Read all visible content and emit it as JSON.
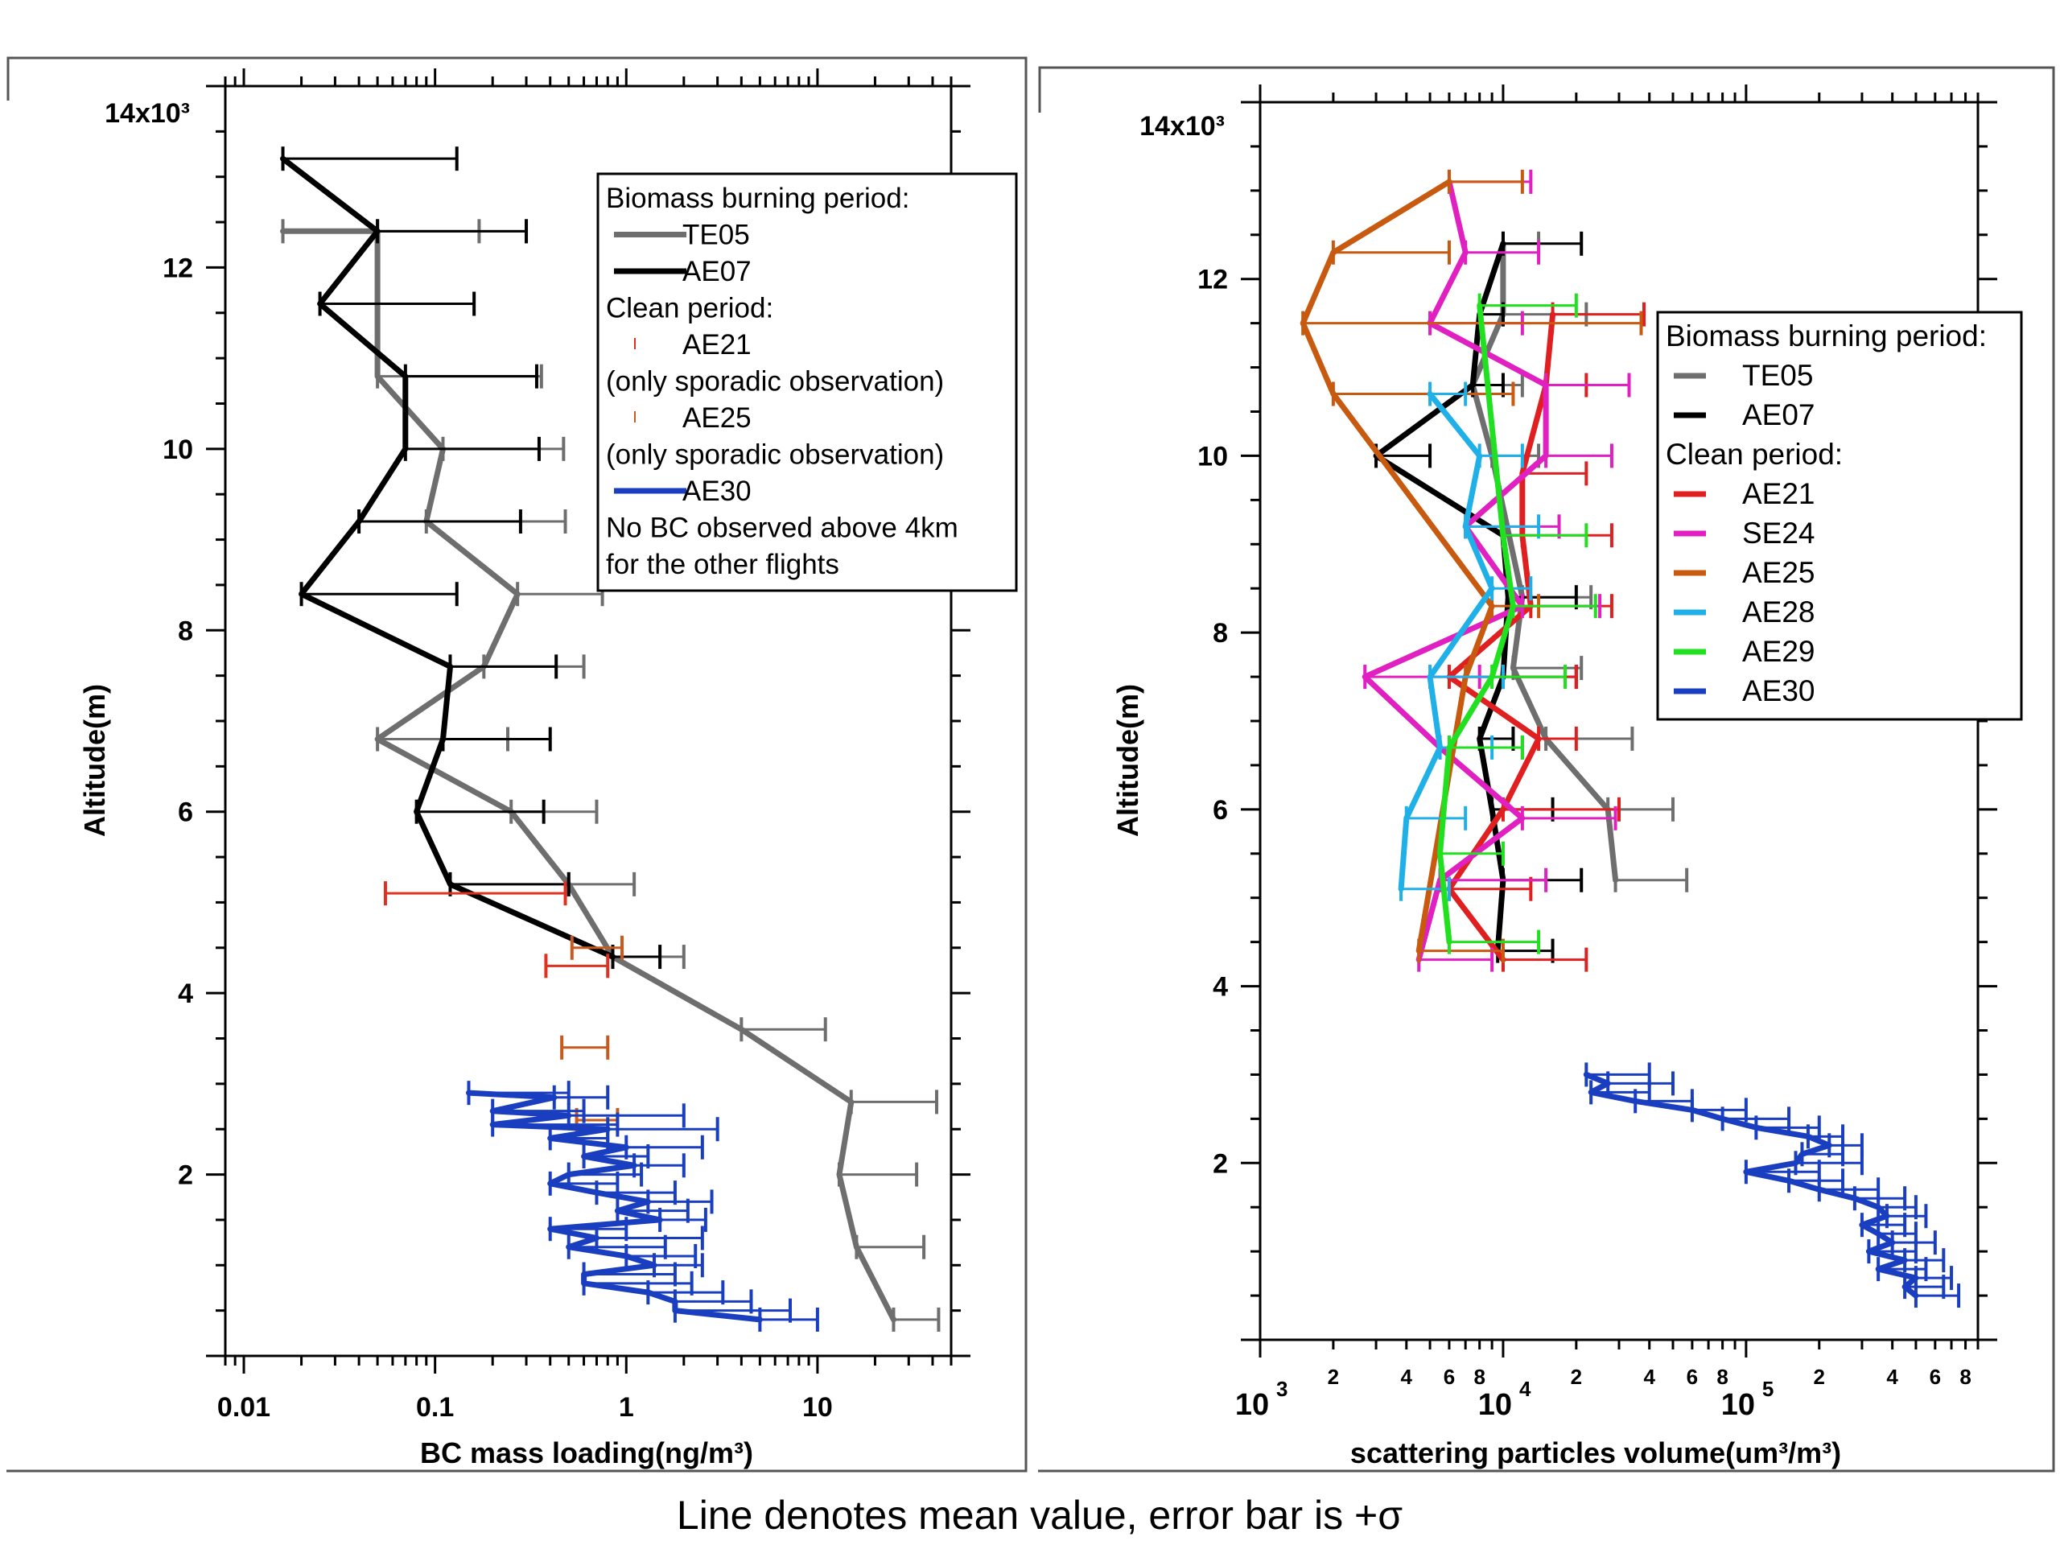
{
  "caption": "Line denotes mean value, error bar is +σ",
  "chart_data": [
    {
      "type": "line",
      "orientation": "vertical profile",
      "xlabel": "BC mass loading(ng/m³)",
      "ylabel": "Altitude(m)",
      "xscale": "log",
      "xlim": [
        0.008,
        50
      ],
      "ylim": [
        0,
        14000
      ],
      "y_multiplier_label": "14x10³",
      "x_ticks": [
        {
          "v": 0.01,
          "label": "0.01"
        },
        {
          "v": 0.1,
          "label": "0.1"
        },
        {
          "v": 1,
          "label": "1"
        },
        {
          "v": 10,
          "label": "10"
        }
      ],
      "y_ticks": [
        {
          "v": 2000,
          "label": "2"
        },
        {
          "v": 4000,
          "label": "4"
        },
        {
          "v": 6000,
          "label": "6"
        },
        {
          "v": 8000,
          "label": "8"
        },
        {
          "v": 10000,
          "label": "10"
        },
        {
          "v": 12000,
          "label": "12"
        }
      ],
      "legend": {
        "position": "top-right",
        "entries": [
          {
            "text": "Biomass burning period:",
            "kind": "header"
          },
          {
            "text": "TE05",
            "kind": "line",
            "color": "#6e6e6e"
          },
          {
            "text": "AE07",
            "kind": "line",
            "color": "#000000"
          },
          {
            "text": "Clean period:",
            "kind": "header"
          },
          {
            "text": "AE21",
            "kind": "tick",
            "color": "#e03020"
          },
          {
            "text": "(only sporadic observation)",
            "kind": "note"
          },
          {
            "text": "AE25",
            "kind": "tick",
            "color": "#c85a20"
          },
          {
            "text": "(only sporadic observation)",
            "kind": "note"
          },
          {
            "text": "AE30",
            "kind": "line",
            "color": "#1a3ec0"
          },
          {
            "text": "No BC observed above 4km",
            "kind": "note"
          },
          {
            "text": "for the other flights",
            "kind": "note"
          }
        ]
      },
      "series": [
        {
          "name": "TE05",
          "color": "#6e6e6e",
          "line": true,
          "points": [
            [
              0.016,
              12400,
              0.17
            ],
            [
              0.05,
              12400,
              0.3
            ],
            [
              0.05,
              10800,
              0.36
            ],
            [
              0.11,
              10000,
              0.47
            ],
            [
              0.09,
              9200,
              0.48
            ],
            [
              0.27,
              8400,
              0.75
            ],
            [
              0.18,
              7600,
              0.6
            ],
            [
              0.05,
              6800,
              0.24
            ],
            [
              0.25,
              6000,
              0.7
            ],
            [
              0.5,
              5200,
              1.1
            ],
            [
              0.85,
              4400,
              2.0
            ],
            [
              4,
              3600,
              11
            ],
            [
              15,
              2800,
              42
            ],
            [
              13,
              2000,
              33
            ],
            [
              16,
              1200,
              36
            ],
            [
              25,
              400,
              43
            ]
          ]
        },
        {
          "name": "AE07",
          "color": "#000000",
          "line": true,
          "points": [
            [
              0.016,
              13200,
              0.13
            ],
            [
              0.05,
              12400,
              0.3
            ],
            [
              0.025,
              11600,
              0.16
            ],
            [
              0.07,
              10800,
              0.34
            ],
            [
              0.07,
              10000,
              0.35
            ],
            [
              0.04,
              9200,
              0.28
            ],
            [
              0.02,
              8400,
              0.13
            ],
            [
              0.12,
              7600,
              0.43
            ],
            [
              0.11,
              6800,
              0.4
            ],
            [
              0.08,
              6000,
              0.37
            ],
            [
              0.12,
              5200,
              0.5
            ],
            [
              0.85,
              4400,
              1.5
            ]
          ]
        },
        {
          "name": "AE21",
          "color": "#e03020",
          "line": false,
          "points": [
            [
              0.055,
              5100,
              0.48
            ],
            [
              0.38,
              4300,
              0.8
            ]
          ]
        },
        {
          "name": "AE25",
          "color": "#c85a20",
          "line": false,
          "points": [
            [
              0.52,
              4500,
              0.95
            ],
            [
              0.46,
              3400,
              0.8
            ],
            [
              0.55,
              2600,
              0.9
            ]
          ]
        },
        {
          "name": "AE30",
          "color": "#1a3ec0",
          "line": true,
          "points": [
            [
              0.15,
              2900,
              0.5
            ],
            [
              0.42,
              2850,
              0.8
            ],
            [
              0.2,
              2700,
              0.6
            ],
            [
              0.5,
              2650,
              2.0
            ],
            [
              0.2,
              2550,
              0.9
            ],
            [
              0.8,
              2500,
              3.0
            ],
            [
              0.4,
              2400,
              0.8
            ],
            [
              1.0,
              2300,
              2.5
            ],
            [
              0.6,
              2200,
              1.3
            ],
            [
              1.1,
              2100,
              2.0
            ],
            [
              0.5,
              2000,
              1.2
            ],
            [
              0.4,
              1900,
              0.9
            ],
            [
              0.7,
              1800,
              1.8
            ],
            [
              1.3,
              1700,
              2.8
            ],
            [
              0.9,
              1600,
              2.1
            ],
            [
              1.5,
              1500,
              2.6
            ],
            [
              0.4,
              1400,
              1.0
            ],
            [
              0.7,
              1300,
              2.5
            ],
            [
              0.5,
              1200,
              1.6
            ],
            [
              1.0,
              1100,
              2.3
            ],
            [
              1.4,
              1000,
              2.5
            ],
            [
              0.6,
              900,
              1.8
            ],
            [
              0.6,
              800,
              2.2
            ],
            [
              1.3,
              700,
              3.2
            ],
            [
              1.8,
              600,
              4.5
            ],
            [
              1.8,
              500,
              7.2
            ],
            [
              5.0,
              400,
              10
            ]
          ]
        }
      ]
    },
    {
      "type": "line",
      "orientation": "vertical profile",
      "xlabel": "scattering particles volume(um³/m³)",
      "ylabel": "Altitude(m)",
      "xscale": "log",
      "xlim": [
        1000,
        900000
      ],
      "ylim": [
        0,
        14000
      ],
      "y_multiplier_label": "14x10³",
      "x_ticks": [
        {
          "v": 1000,
          "label": "10³",
          "base": "10",
          "exp": "3"
        },
        {
          "v": 10000,
          "label": "10⁴",
          "base": "10",
          "exp": "4"
        },
        {
          "v": 100000,
          "label": "10⁵",
          "base": "10",
          "exp": "5"
        }
      ],
      "x_minor_labels": [
        "2",
        "4",
        "6",
        "8"
      ],
      "y_ticks": [
        {
          "v": 2000,
          "label": "2"
        },
        {
          "v": 4000,
          "label": "4"
        },
        {
          "v": 6000,
          "label": "6"
        },
        {
          "v": 8000,
          "label": "8"
        },
        {
          "v": 10000,
          "label": "10"
        },
        {
          "v": 12000,
          "label": "12"
        }
      ],
      "legend": {
        "position": "right",
        "entries": [
          {
            "text": "Biomass burning period:",
            "kind": "header"
          },
          {
            "text": "TE05",
            "kind": "line",
            "color": "#6e6e6e"
          },
          {
            "text": "AE07",
            "kind": "line",
            "color": "#000000"
          },
          {
            "text": "Clean period:",
            "kind": "header"
          },
          {
            "text": "AE21",
            "kind": "line",
            "color": "#e02020"
          },
          {
            "text": "SE24",
            "kind": "line",
            "color": "#e020c0"
          },
          {
            "text": "AE25",
            "kind": "line",
            "color": "#c85a10"
          },
          {
            "text": "AE28",
            "kind": "line",
            "color": "#20b0e8"
          },
          {
            "text": "AE29",
            "kind": "line",
            "color": "#20e020"
          },
          {
            "text": "AE30",
            "kind": "line",
            "color": "#1a3ec0"
          }
        ]
      },
      "series": [
        {
          "name": "TE05",
          "color": "#6e6e6e",
          "line": true,
          "points": [
            [
              10000,
              12400,
              14000
            ],
            [
              10000,
              11600,
              22000
            ],
            [
              7500,
              10800,
              12000
            ],
            [
              9000,
              10000,
              14000
            ],
            [
              12000,
              8400,
              23000
            ],
            [
              11000,
              7600,
              21000
            ],
            [
              15000,
              6800,
              34000
            ],
            [
              27000,
              6000,
              50000
            ],
            [
              29000,
              5200,
              57000
            ]
          ]
        },
        {
          "name": "AE07",
          "color": "#000000",
          "line": true,
          "points": [
            [
              10000,
              12400,
              21000
            ],
            [
              8000,
              11600,
              10000
            ],
            [
              7500,
              10800,
              10000
            ],
            [
              3000,
              10000,
              5000
            ],
            [
              10000,
              9100,
              12000
            ],
            [
              10500,
              8400,
              20000
            ],
            [
              10000,
              7500,
              20000
            ],
            [
              8000,
              6800,
              11000
            ],
            [
              9000,
              6000,
              16000
            ],
            [
              10000,
              5200,
              21000
            ],
            [
              9500,
              4400,
              16000
            ]
          ]
        },
        {
          "name": "AE21",
          "color": "#e02020",
          "line": true,
          "points": [
            [
              16000,
              11600,
              38000
            ],
            [
              15000,
              10800,
              22000
            ],
            [
              12000,
              9800,
              22000
            ],
            [
              12000,
              9100,
              28000
            ],
            [
              13000,
              8300,
              28000
            ],
            [
              6000,
              7500,
              20000
            ],
            [
              14000,
              6800,
              20000
            ],
            [
              10000,
              6000,
              30000
            ],
            [
              6000,
              5100,
              13000
            ],
            [
              10000,
              4300,
              22000
            ]
          ]
        },
        {
          "name": "SE24",
          "color": "#e020c0",
          "line": true,
          "points": [
            [
              6000,
              13100,
              13000
            ],
            [
              7000,
              12300,
              14000
            ],
            [
              5000,
              11500,
              12000
            ],
            [
              15000,
              10800,
              33000
            ],
            [
              15000,
              10000,
              28000
            ],
            [
              7000,
              9200,
              17000
            ],
            [
              12000,
              8300,
              25000
            ],
            [
              2700,
              7500,
              8000
            ],
            [
              5500,
              6700,
              12000
            ],
            [
              12000,
              5900,
              29000
            ],
            [
              5500,
              5200,
              15000
            ],
            [
              4500,
              4300,
              9000
            ]
          ]
        },
        {
          "name": "AE25",
          "color": "#c85a10",
          "line": true,
          "points": [
            [
              6000,
              13100,
              12000
            ],
            [
              2000,
              12300,
              6000
            ],
            [
              1500,
              11500,
              37000
            ],
            [
              2000,
              10700,
              11000
            ],
            [
              9000,
              8300,
              14000
            ],
            [
              7000,
              7500,
              10000
            ],
            [
              4500,
              4400,
              10000
            ]
          ]
        },
        {
          "name": "AE28",
          "color": "#20b0e8",
          "line": true,
          "points": [
            [
              5000,
              10700,
              7000
            ],
            [
              8000,
              10000,
              12000
            ],
            [
              7000,
              9200,
              14000
            ],
            [
              9000,
              8500,
              13000
            ],
            [
              5000,
              7500,
              10000
            ],
            [
              5500,
              6700,
              9000
            ],
            [
              4000,
              5900,
              7000
            ],
            [
              3800,
              5100,
              6000
            ]
          ]
        },
        {
          "name": "AE29",
          "color": "#20e020",
          "line": true,
          "points": [
            [
              8000,
              11700,
              20000
            ],
            [
              10000,
              9100,
              22000
            ],
            [
              11000,
              8300,
              24000
            ],
            [
              9000,
              7500,
              18000
            ],
            [
              6000,
              6700,
              12000
            ],
            [
              5500,
              5500,
              10000
            ],
            [
              6000,
              4500,
              14000
            ]
          ]
        },
        {
          "name": "AE30",
          "color": "#1a3ec0",
          "line": true,
          "points": [
            [
              22000,
              3000,
              40000
            ],
            [
              27000,
              2900,
              50000
            ],
            [
              23000,
              2800,
              40000
            ],
            [
              35000,
              2700,
              60000
            ],
            [
              60000,
              2600,
              100000
            ],
            [
              80000,
              2500,
              150000
            ],
            [
              110000,
              2400,
              200000
            ],
            [
              180000,
              2300,
              250000
            ],
            [
              220000,
              2200,
              300000
            ],
            [
              170000,
              2100,
              250000
            ],
            [
              160000,
              2000,
              300000
            ],
            [
              100000,
              1900,
              200000
            ],
            [
              150000,
              1800,
              250000
            ],
            [
              200000,
              1700,
              350000
            ],
            [
              280000,
              1600,
              450000
            ],
            [
              350000,
              1500,
              500000
            ],
            [
              380000,
              1400,
              550000
            ],
            [
              300000,
              1300,
              450000
            ],
            [
              350000,
              1200,
              500000
            ],
            [
              400000,
              1100,
              600000
            ],
            [
              320000,
              1000,
              500000
            ],
            [
              450000,
              900,
              650000
            ],
            [
              350000,
              800,
              550000
            ],
            [
              500000,
              700,
              700000
            ],
            [
              450000,
              600,
              650000
            ],
            [
              500000,
              500,
              750000
            ]
          ]
        }
      ]
    }
  ]
}
